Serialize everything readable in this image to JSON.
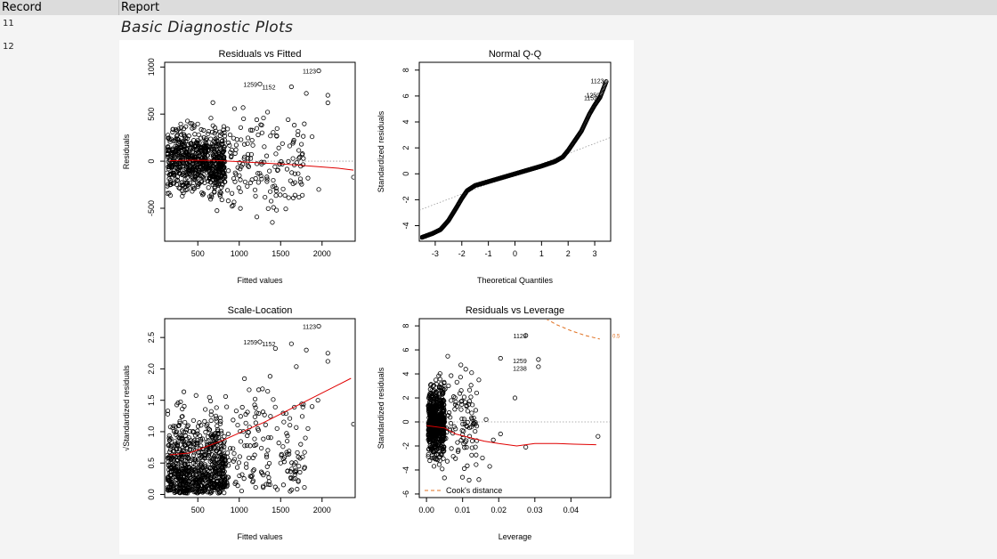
{
  "table": {
    "col_record": "Record",
    "col_report": "Report",
    "rows": [
      {
        "record": "11",
        "title": "Basic Diagnostic Plots"
      },
      {
        "record": "12"
      }
    ]
  },
  "colors": {
    "points": "#000000",
    "smooth": "#e00000",
    "cooks": "#e07020",
    "reference": "#999999",
    "header_bg": "#dcdcdc",
    "row_alt_bg": "#f4f4f4"
  },
  "chart_data": [
    {
      "type": "scatter",
      "title": "Residuals vs Fitted",
      "xlabel": "Fitted values",
      "ylabel": "Residuals",
      "xlim": [
        100,
        2400
      ],
      "ylim": [
        -850,
        1050
      ],
      "xticks": [
        "500",
        "1000",
        "1500",
        "2000"
      ],
      "yticks": [
        "-500",
        "0",
        "500",
        "1000"
      ],
      "reference_line": 0,
      "labels": [
        {
          "text": "1123",
          "x": 1960,
          "y": 960
        },
        {
          "text": "1259",
          "x": 1250,
          "y": 820
        },
        {
          "text": "1152",
          "x": 1470,
          "y": 790
        }
      ],
      "notable_points": [
        {
          "x": 1960,
          "y": 960
        },
        {
          "x": 1250,
          "y": 820
        },
        {
          "x": 1630,
          "y": 790
        },
        {
          "x": 1810,
          "y": 720
        },
        {
          "x": 2070,
          "y": 700
        },
        {
          "x": 2070,
          "y": 620
        },
        {
          "x": 1880,
          "y": 260
        },
        {
          "x": 2380,
          "y": -170
        },
        {
          "x": 1960,
          "y": -300
        },
        {
          "x": 1400,
          "y": -650
        },
        {
          "x": 1450,
          "y": -520
        },
        {
          "x": 1520,
          "y": -30
        },
        {
          "x": 1720,
          "y": 30
        },
        {
          "x": 1830,
          "y": -180
        },
        {
          "x": 1650,
          "y": -240
        }
      ],
      "smooth": [
        [
          160,
          5
        ],
        [
          400,
          10
        ],
        [
          700,
          8
        ],
        [
          1000,
          -5
        ],
        [
          1300,
          -20
        ],
        [
          1600,
          -35
        ],
        [
          1900,
          -55
        ],
        [
          2200,
          -75
        ],
        [
          2380,
          -95
        ]
      ]
    },
    {
      "type": "scatter",
      "title": "Normal Q-Q",
      "xlabel": "Theoretical Quantiles",
      "ylabel": "Standardized residuals",
      "xlim": [
        -3.6,
        3.6
      ],
      "ylim": [
        -5.2,
        8.6
      ],
      "xticks": [
        "-3",
        "-2",
        "-1",
        "0",
        "1",
        "2",
        "3"
      ],
      "yticks": [
        "-4",
        "-2",
        "0",
        "2",
        "4",
        "6",
        "8"
      ],
      "reference_line": {
        "slope": 0.78,
        "intercept": 0.0
      },
      "labels": [
        {
          "text": "1123",
          "x": 3.45,
          "y": 7.2
        },
        {
          "text": "1259",
          "x": 3.3,
          "y": 6.1
        },
        {
          "text": "1152",
          "x": 3.2,
          "y": 5.9
        }
      ],
      "qq_curve": [
        [
          -3.5,
          -4.9
        ],
        [
          -3.1,
          -4.6
        ],
        [
          -2.8,
          -4.3
        ],
        [
          -2.5,
          -3.6
        ],
        [
          -2.2,
          -2.6
        ],
        [
          -2.0,
          -1.9
        ],
        [
          -1.8,
          -1.3
        ],
        [
          -1.5,
          -0.9
        ],
        [
          -1.0,
          -0.6
        ],
        [
          0.0,
          0.0
        ],
        [
          1.0,
          0.6
        ],
        [
          1.5,
          0.95
        ],
        [
          1.8,
          1.3
        ],
        [
          2.0,
          1.8
        ],
        [
          2.2,
          2.4
        ],
        [
          2.5,
          3.3
        ],
        [
          2.8,
          4.6
        ],
        [
          3.0,
          5.3
        ],
        [
          3.2,
          5.9
        ],
        [
          3.45,
          7.2
        ]
      ]
    },
    {
      "type": "scatter",
      "title": "Scale-Location",
      "xlabel": "Fitted values",
      "ylabel": "√Standardized residuals",
      "xlim": [
        100,
        2400
      ],
      "ylim": [
        -0.05,
        2.8
      ],
      "xticks": [
        "500",
        "1000",
        "1500",
        "2000"
      ],
      "yticks": [
        "0.0",
        "0.5",
        "1.0",
        "1.5",
        "2.0",
        "2.5"
      ],
      "labels": [
        {
          "text": "1123",
          "x": 1960,
          "y": 2.68
        },
        {
          "text": "1259",
          "x": 1250,
          "y": 2.43
        },
        {
          "text": "1152",
          "x": 1470,
          "y": 2.4
        }
      ],
      "notable_points": [
        {
          "x": 1960,
          "y": 2.68
        },
        {
          "x": 1250,
          "y": 2.43
        },
        {
          "x": 1630,
          "y": 2.4
        },
        {
          "x": 1810,
          "y": 2.3
        },
        {
          "x": 2070,
          "y": 2.25
        },
        {
          "x": 2070,
          "y": 2.12
        },
        {
          "x": 2380,
          "y": 1.12
        },
        {
          "x": 1950,
          "y": 1.5
        },
        {
          "x": 1880,
          "y": 1.4
        },
        {
          "x": 1500,
          "y": 0.5
        },
        {
          "x": 1720,
          "y": 0.45
        },
        {
          "x": 1830,
          "y": 1.05
        }
      ],
      "smooth": [
        [
          160,
          0.63
        ],
        [
          400,
          0.66
        ],
        [
          600,
          0.76
        ],
        [
          800,
          0.86
        ],
        [
          1000,
          0.98
        ],
        [
          1300,
          1.15
        ],
        [
          1600,
          1.35
        ],
        [
          1900,
          1.55
        ],
        [
          2200,
          1.75
        ],
        [
          2350,
          1.85
        ]
      ]
    },
    {
      "type": "scatter",
      "title": "Residuals vs Leverage",
      "xlabel": "Leverage",
      "ylabel": "Standardized residuals",
      "xlim": [
        -0.002,
        0.051
      ],
      "ylim": [
        -6.3,
        8.6
      ],
      "xticks": [
        "0.00",
        "0.01",
        "0.02",
        "0.03",
        "0.04"
      ],
      "yticks": [
        "-6",
        "-4",
        "-2",
        "0",
        "2",
        "4",
        "6",
        "8"
      ],
      "reference_line": 0,
      "legend": {
        "label": "Cook's distance",
        "position": "bottom-left"
      },
      "cooks_label": "0.5",
      "labels": [
        {
          "text": "1123",
          "x": 0.0285,
          "y": 7.2
        },
        {
          "text": "1259",
          "x": 0.0285,
          "y": 5.1
        },
        {
          "text": "1238",
          "x": 0.0285,
          "y": 4.5
        }
      ],
      "notable_points": [
        {
          "x": 0.0275,
          "y": 7.2
        },
        {
          "x": 0.031,
          "y": 5.2
        },
        {
          "x": 0.031,
          "y": 4.6
        },
        {
          "x": 0.0205,
          "y": 5.3
        },
        {
          "x": 0.0245,
          "y": 2.0
        },
        {
          "x": 0.0165,
          "y": 0.2
        },
        {
          "x": 0.0205,
          "y": -1.0
        },
        {
          "x": 0.0185,
          "y": -1.5
        },
        {
          "x": 0.0275,
          "y": -2.1
        },
        {
          "x": 0.0475,
          "y": -1.2
        },
        {
          "x": 0.0155,
          "y": -3.0
        },
        {
          "x": 0.0175,
          "y": -3.7
        },
        {
          "x": 0.0145,
          "y": -4.8
        },
        {
          "x": 0.0125,
          "y": 4.1
        },
        {
          "x": 0.0145,
          "y": 3.5
        }
      ],
      "smooth": [
        [
          0.0,
          -0.3
        ],
        [
          0.005,
          -0.5
        ],
        [
          0.008,
          -1.0
        ],
        [
          0.012,
          -1.3
        ],
        [
          0.016,
          -1.6
        ],
        [
          0.02,
          -1.8
        ],
        [
          0.025,
          -2.0
        ],
        [
          0.03,
          -1.8
        ],
        [
          0.036,
          -1.8
        ],
        [
          0.041,
          -1.85
        ],
        [
          0.047,
          -1.9
        ]
      ],
      "cooks_curve": [
        [
          0.033,
          8.6
        ],
        [
          0.036,
          8.1
        ],
        [
          0.04,
          7.6
        ],
        [
          0.044,
          7.2
        ],
        [
          0.048,
          6.9
        ]
      ]
    }
  ]
}
